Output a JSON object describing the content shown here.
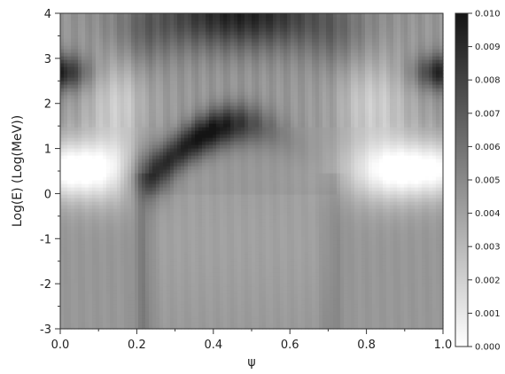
{
  "chart_data": {
    "type": "heatmap",
    "title": "",
    "xlabel": "ψ",
    "ylabel": "Log(E) (Log(MeV))",
    "xlim": [
      0.0,
      1.0
    ],
    "ylim": [
      -3.0,
      4.0
    ],
    "x_ticks": [
      "0.0",
      "0.2",
      "0.4",
      "0.6",
      "0.8",
      "1.0"
    ],
    "y_ticks": [
      "-3",
      "-2",
      "-1",
      "0",
      "1",
      "2",
      "3",
      "4"
    ],
    "colorbar": {
      "min": 0.0,
      "max": 0.01,
      "colormap": "gray-reversed (white = 0.000, black = 0.010)",
      "ticks": [
        "0.000",
        "0.001",
        "0.002",
        "0.003",
        "0.004",
        "0.005",
        "0.006",
        "0.007",
        "0.008",
        "0.009",
        "0.010"
      ]
    },
    "grid": false,
    "z_description": "Approximate intensity field: bright band near Log(E)=0.5 at the edges, dark arc centered at psi~0.3 around Log(E)=0.5-1.5, dark region near Log(E)=4 around psi=0.3-0.7, dark spots at psi~0 and psi~1 near Log(E)=2.7, mid-gray below Log(E)=0."
  }
}
